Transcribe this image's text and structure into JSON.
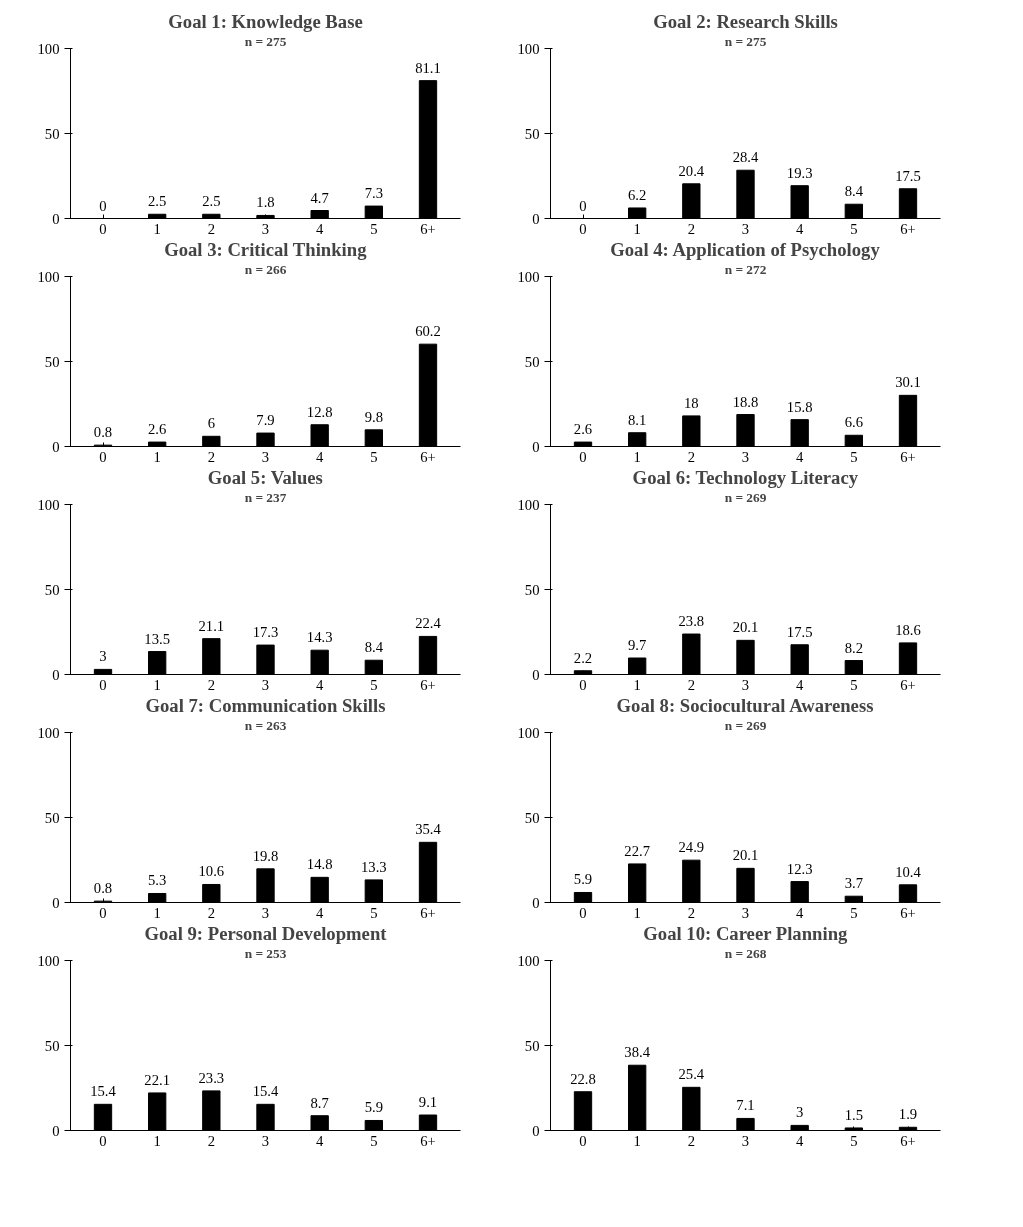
{
  "chart_data": [
    {
      "type": "bar",
      "title": "Goal 1: Knowledge Base",
      "subtitle": "n = 275",
      "categories": [
        "0",
        "1",
        "2",
        "3",
        "4",
        "5",
        "6+"
      ],
      "values": [
        0,
        2.5,
        2.5,
        1.8,
        4.7,
        7.3,
        81.1
      ],
      "color": "#000000",
      "ylim": [
        0,
        100
      ],
      "yticks": [
        0,
        50,
        100
      ],
      "data_labels": true,
      "grid": false
    },
    {
      "type": "bar",
      "title": "Goal 2: Research Skills",
      "subtitle": "n = 275",
      "categories": [
        "0",
        "1",
        "2",
        "3",
        "4",
        "5",
        "6+"
      ],
      "values": [
        0,
        6.2,
        20.4,
        28.4,
        19.3,
        8.4,
        17.5
      ],
      "color": "#000000",
      "ylim": [
        0,
        100
      ],
      "yticks": [
        0,
        50,
        100
      ],
      "data_labels": true,
      "grid": false
    },
    {
      "type": "bar",
      "title": "Goal 3: Critical Thinking",
      "subtitle": "n = 266",
      "categories": [
        "0",
        "1",
        "2",
        "3",
        "4",
        "5",
        "6+"
      ],
      "values": [
        0.8,
        2.6,
        6,
        7.9,
        12.8,
        9.8,
        60.2
      ],
      "color": "#000000",
      "ylim": [
        0,
        100
      ],
      "yticks": [
        0,
        50,
        100
      ],
      "data_labels": true,
      "grid": false
    },
    {
      "type": "bar",
      "title": "Goal 4: Application of Psychology",
      "subtitle": "n = 272",
      "categories": [
        "0",
        "1",
        "2",
        "3",
        "4",
        "5",
        "6+"
      ],
      "values": [
        2.6,
        8.1,
        18,
        18.8,
        15.8,
        6.6,
        30.1
      ],
      "color": "#000000",
      "ylim": [
        0,
        100
      ],
      "yticks": [
        0,
        50,
        100
      ],
      "data_labels": true,
      "grid": false
    },
    {
      "type": "bar",
      "title": "Goal 5: Values",
      "subtitle": "n = 237",
      "categories": [
        "0",
        "1",
        "2",
        "3",
        "4",
        "5",
        "6+"
      ],
      "values": [
        3,
        13.5,
        21.1,
        17.3,
        14.3,
        8.4,
        22.4
      ],
      "color": "#000000",
      "ylim": [
        0,
        100
      ],
      "yticks": [
        0,
        50,
        100
      ],
      "data_labels": true,
      "grid": false
    },
    {
      "type": "bar",
      "title": "Goal 6: Technology Literacy",
      "subtitle": "n = 269",
      "categories": [
        "0",
        "1",
        "2",
        "3",
        "4",
        "5",
        "6+"
      ],
      "values": [
        2.2,
        9.7,
        23.8,
        20.1,
        17.5,
        8.2,
        18.6
      ],
      "color": "#000000",
      "ylim": [
        0,
        100
      ],
      "yticks": [
        0,
        50,
        100
      ],
      "data_labels": true,
      "grid": false
    },
    {
      "type": "bar",
      "title": "Goal 7: Communication Skills",
      "subtitle": "n = 263",
      "categories": [
        "0",
        "1",
        "2",
        "3",
        "4",
        "5",
        "6+"
      ],
      "values": [
        0.8,
        5.3,
        10.6,
        19.8,
        14.8,
        13.3,
        35.4
      ],
      "color": "#000000",
      "ylim": [
        0,
        100
      ],
      "yticks": [
        0,
        50,
        100
      ],
      "data_labels": true,
      "grid": false
    },
    {
      "type": "bar",
      "title": "Goal 8: Sociocultural Awareness",
      "subtitle": "n = 269",
      "categories": [
        "0",
        "1",
        "2",
        "3",
        "4",
        "5",
        "6+"
      ],
      "values": [
        5.9,
        22.7,
        24.9,
        20.1,
        12.3,
        3.7,
        10.4
      ],
      "color": "#000000",
      "ylim": [
        0,
        100
      ],
      "yticks": [
        0,
        50,
        100
      ],
      "data_labels": true,
      "grid": false
    },
    {
      "type": "bar",
      "title": "Goal 9: Personal Development",
      "subtitle": "n = 253",
      "categories": [
        "0",
        "1",
        "2",
        "3",
        "4",
        "5",
        "6+"
      ],
      "values": [
        15.4,
        22.1,
        23.3,
        15.4,
        8.7,
        5.9,
        9.1
      ],
      "color": "#000000",
      "ylim": [
        0,
        100
      ],
      "yticks": [
        0,
        50,
        100
      ],
      "data_labels": true,
      "grid": false
    },
    {
      "type": "bar",
      "title": "Goal 10: Career Planning",
      "subtitle": "n = 268",
      "categories": [
        "0",
        "1",
        "2",
        "3",
        "4",
        "5",
        "6+"
      ],
      "values": [
        22.8,
        38.4,
        25.4,
        7.1,
        3,
        1.5,
        1.9
      ],
      "color": "#000000",
      "ylim": [
        0,
        100
      ],
      "yticks": [
        0,
        50,
        100
      ],
      "data_labels": true,
      "grid": false
    }
  ]
}
